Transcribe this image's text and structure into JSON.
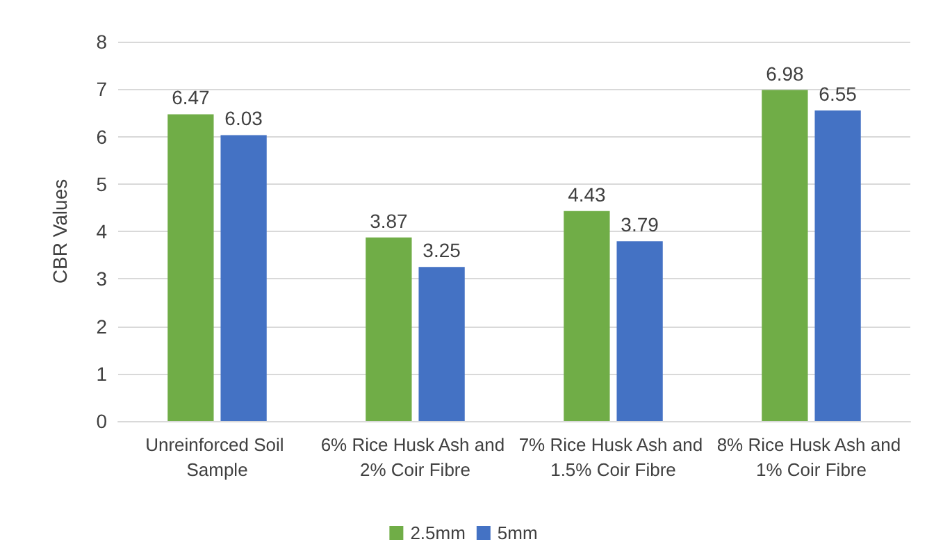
{
  "chart_data": {
    "type": "bar",
    "ylabel": "CBR Values",
    "categories": [
      "Unreinforced Soil Sample",
      "6% Rice Husk Ash and 2% Coir Fibre",
      "7% Rice Husk Ash and 1.5% Coir Fibre",
      "8% Rice Husk Ash and 1% Coir Fibre"
    ],
    "series": [
      {
        "name": "2.5mm",
        "color": "#70ad47",
        "values": [
          6.47,
          3.87,
          4.43,
          6.98
        ]
      },
      {
        "name": "5mm",
        "color": "#4472c4",
        "values": [
          6.03,
          3.25,
          3.79,
          6.55
        ]
      }
    ],
    "ylim": [
      0,
      8
    ],
    "yticks": [
      0,
      1,
      2,
      3,
      4,
      5,
      6,
      7,
      8
    ],
    "grid": "y",
    "legend": "bottom",
    "data_labels": true
  }
}
